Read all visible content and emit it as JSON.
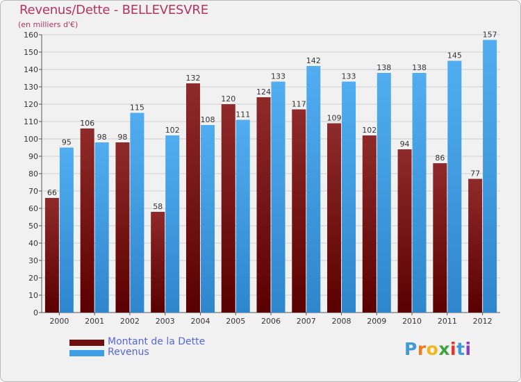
{
  "header": {
    "title": "Revenus/Dette - BELLEVESVRE",
    "subtitle": "(en milliers d'€)"
  },
  "colors": {
    "dette": "#7a1a1a",
    "revenus": "#3d9ee6",
    "grid": "#cfcfcf",
    "title": "#b5335c",
    "legend_text": "#5566dd"
  },
  "chart_data": {
    "type": "bar",
    "title": "Revenus/Dette - BELLEVESVRE",
    "subtitle": "(en milliers d'€)",
    "xlabel": "",
    "ylabel": "",
    "ylim": [
      0,
      160
    ],
    "yticks": [
      0,
      10,
      20,
      30,
      40,
      50,
      60,
      70,
      80,
      90,
      100,
      110,
      120,
      130,
      140,
      150,
      160
    ],
    "grid": true,
    "legend_position": "bottom-left",
    "categories": [
      "2000",
      "2001",
      "2002",
      "2003",
      "2004",
      "2005",
      "2006",
      "2007",
      "2008",
      "2009",
      "2010",
      "2011",
      "2012"
    ],
    "series": [
      {
        "name": "Montant de la Dette",
        "color": "#7a1a1a",
        "values": [
          66,
          106,
          98,
          58,
          132,
          120,
          124,
          117,
          109,
          102,
          94,
          86,
          77
        ]
      },
      {
        "name": "Revenus",
        "color": "#3d9ee6",
        "values": [
          95,
          98,
          115,
          102,
          108,
          111,
          133,
          142,
          133,
          138,
          138,
          145,
          157
        ]
      }
    ]
  },
  "legend": {
    "items": [
      {
        "label": "Montant de la Dette",
        "color": "#6b0f0f"
      },
      {
        "label": "Revenus",
        "color": "#3d9ee6"
      }
    ]
  },
  "logo": {
    "letters": [
      "P",
      "r",
      "o",
      "x",
      "i",
      "t",
      "i"
    ],
    "colors": [
      "#3f9ad8",
      "#f07a1e",
      "#f0b81e",
      "#3fa33f",
      "#e8322d",
      "#3f9ad8",
      "#8a3fbf"
    ]
  }
}
